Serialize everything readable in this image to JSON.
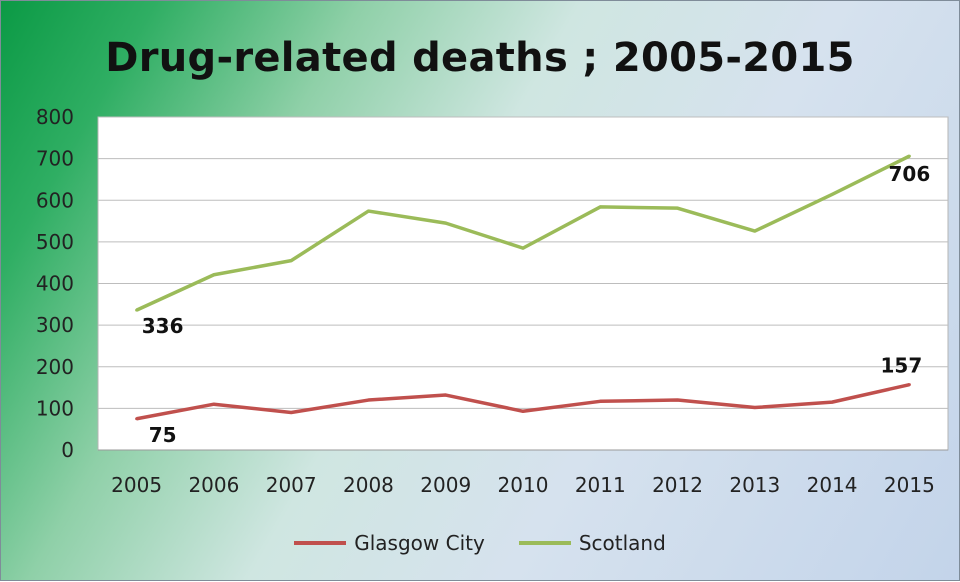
{
  "chart_data": {
    "type": "line",
    "title": "Drug-related deaths ; 2005-2015",
    "x": [
      "2005",
      "2006",
      "2007",
      "2008",
      "2009",
      "2010",
      "2011",
      "2012",
      "2013",
      "2014",
      "2015"
    ],
    "series": [
      {
        "name": "Glasgow City",
        "color": "#c0504d",
        "values": [
          75,
          110,
          90,
          120,
          132,
          93,
          117,
          120,
          102,
          115,
          157
        ]
      },
      {
        "name": "Scotland",
        "color": "#9bbb59",
        "values": [
          336,
          421,
          455,
          574,
          545,
          485,
          584,
          581,
          526,
          614,
          706
        ]
      }
    ],
    "data_labels": [
      {
        "series": 0,
        "index": 0,
        "text": "75"
      },
      {
        "series": 0,
        "index": 10,
        "text": "157"
      },
      {
        "series": 1,
        "index": 0,
        "text": "336"
      },
      {
        "series": 1,
        "index": 10,
        "text": "706"
      }
    ],
    "ylim": [
      0,
      800
    ],
    "yticks": [
      "0",
      "100",
      "200",
      "300",
      "400",
      "500",
      "600",
      "700",
      "800"
    ],
    "grid": true,
    "legend_position": "bottom"
  }
}
